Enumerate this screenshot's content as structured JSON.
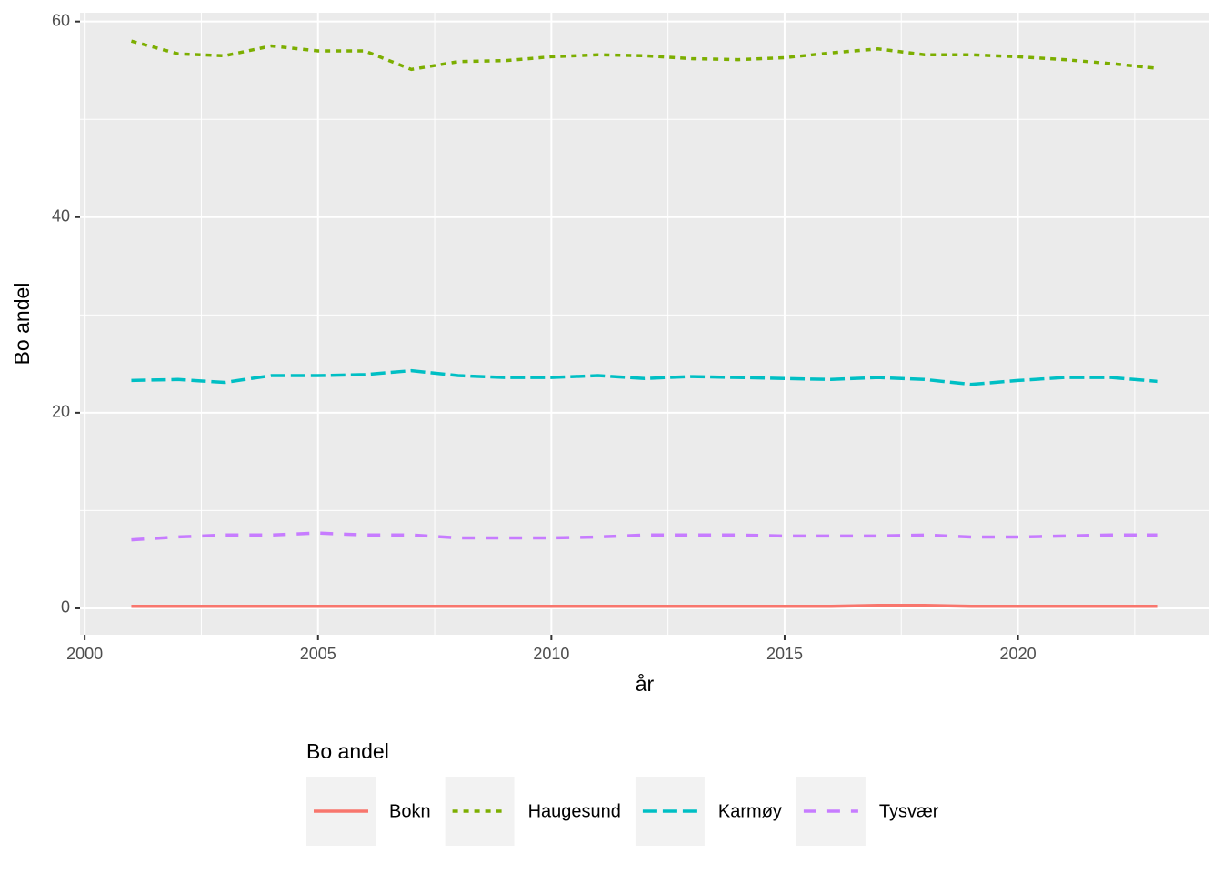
{
  "chart_data": {
    "type": "line",
    "x_label": "år",
    "y_label": "Bo andel",
    "legend_title": "Bo andel",
    "x": [
      2001,
      2002,
      2003,
      2004,
      2005,
      2006,
      2007,
      2008,
      2009,
      2010,
      2011,
      2012,
      2013,
      2014,
      2015,
      2016,
      2017,
      2018,
      2019,
      2020,
      2021,
      2022,
      2023
    ],
    "series": [
      {
        "name": "Bokn",
        "color": "#F8766D",
        "dash": "none",
        "values": [
          0.2,
          0.2,
          0.2,
          0.2,
          0.2,
          0.2,
          0.2,
          0.2,
          0.2,
          0.2,
          0.2,
          0.2,
          0.2,
          0.2,
          0.2,
          0.2,
          0.3,
          0.3,
          0.2,
          0.2,
          0.2,
          0.2,
          0.2
        ]
      },
      {
        "name": "Haugesund",
        "color": "#7CAE00",
        "dash": "6,6",
        "values": [
          58.0,
          56.7,
          56.5,
          57.5,
          57.0,
          57.0,
          55.1,
          55.9,
          56.0,
          56.4,
          56.6,
          56.5,
          56.2,
          56.1,
          56.3,
          56.8,
          57.2,
          56.6,
          56.6,
          56.4,
          56.1,
          55.7,
          55.2
        ]
      },
      {
        "name": "Karmøy",
        "color": "#00BFC4",
        "dash": "16,6",
        "values": [
          23.3,
          23.4,
          23.1,
          23.8,
          23.8,
          23.9,
          24.3,
          23.8,
          23.6,
          23.6,
          23.8,
          23.5,
          23.7,
          23.6,
          23.5,
          23.4,
          23.6,
          23.4,
          22.9,
          23.3,
          23.6,
          23.6,
          23.2
        ]
      },
      {
        "name": "Tysvær",
        "color": "#C77CFF",
        "dash": "14,12",
        "values": [
          7.0,
          7.3,
          7.5,
          7.5,
          7.7,
          7.5,
          7.5,
          7.2,
          7.2,
          7.2,
          7.3,
          7.5,
          7.5,
          7.5,
          7.4,
          7.4,
          7.4,
          7.5,
          7.3,
          7.3,
          7.4,
          7.5,
          7.5
        ]
      }
    ],
    "xlim": [
      1999.9,
      2024.1
    ],
    "xticks": [
      2000,
      2005,
      2010,
      2015,
      2020
    ],
    "ylim": [
      -2.7,
      60.9
    ],
    "yticks": [
      0,
      20,
      40,
      60
    ],
    "grid": true,
    "legend_position": "bottom"
  }
}
